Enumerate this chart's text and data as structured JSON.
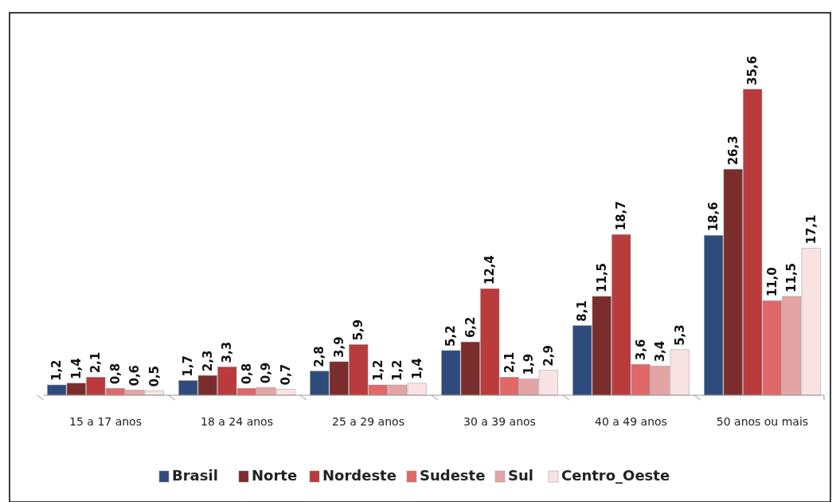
{
  "chart_data": {
    "type": "bar",
    "categories": [
      "15 a 17 anos",
      "18 a 24 anos",
      "25 a 29 anos",
      "30 a 39 anos",
      "40 a 49 anos",
      "50 anos ou mais"
    ],
    "series": [
      {
        "name": "Brasil",
        "color": "#2f4b7c",
        "values": [
          1.2,
          1.7,
          2.8,
          5.2,
          8.1,
          18.6
        ],
        "value_labels": [
          "1,2",
          "1,7",
          "2,8",
          "5,2",
          "8,1",
          "18,6"
        ]
      },
      {
        "name": "Norte",
        "color": "#7b2c2c",
        "values": [
          1.4,
          2.3,
          3.9,
          6.2,
          11.5,
          26.3
        ],
        "value_labels": [
          "1,4",
          "2,3",
          "3,9",
          "6,2",
          "11,5",
          "26,3"
        ]
      },
      {
        "name": "Nordeste",
        "color": "#b93b3b",
        "values": [
          2.1,
          3.3,
          5.9,
          12.4,
          18.7,
          35.6
        ],
        "value_labels": [
          "2,1",
          "3,3",
          "5,9",
          "12,4",
          "18,7",
          "35,6"
        ]
      },
      {
        "name": "Sudeste",
        "color": "#e06868",
        "values": [
          0.8,
          0.8,
          1.2,
          2.1,
          3.6,
          11.0
        ],
        "value_labels": [
          "0,8",
          "0,8",
          "1,2",
          "2,1",
          "3,6",
          "11,0"
        ]
      },
      {
        "name": "Sul",
        "color": "#e4a4a4",
        "values": [
          0.6,
          0.9,
          1.2,
          1.9,
          3.4,
          11.5
        ],
        "value_labels": [
          "0,6",
          "0,9",
          "1,2",
          "1,9",
          "3,4",
          "11,5"
        ]
      },
      {
        "name": "Centro_Oeste",
        "color": "#f8e2e2",
        "values": [
          0.5,
          0.7,
          1.4,
          2.9,
          5.3,
          17.1
        ],
        "value_labels": [
          "0,5",
          "0,7",
          "1,4",
          "2,9",
          "5,3",
          "17,1"
        ]
      }
    ],
    "legend": "bottom"
  }
}
